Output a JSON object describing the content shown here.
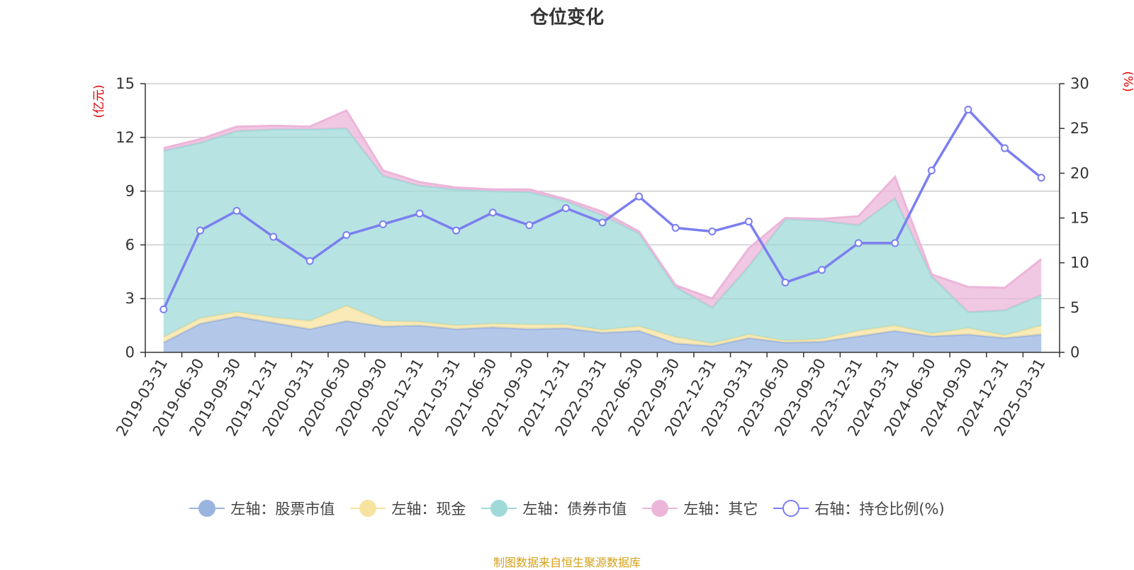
{
  "chart_data": {
    "type": "area",
    "title": "仓位变化",
    "source": "制图数据来自恒生聚源数据库",
    "left_axis_unit": "(亿元)",
    "right_axis_unit": "(%)",
    "left_ylim": [
      0,
      15
    ],
    "right_ylim": [
      0,
      30
    ],
    "left_ticks": [
      "0",
      "3",
      "6",
      "9",
      "12",
      "15"
    ],
    "right_ticks": [
      "0",
      "5",
      "10",
      "15",
      "20",
      "25",
      "30"
    ],
    "grid": true,
    "legend_position": "bottom",
    "categories": [
      "2019-03-31",
      "2019-06-30",
      "2019-09-30",
      "2019-12-31",
      "2020-03-31",
      "2020-06-30",
      "2020-09-30",
      "2020-12-31",
      "2021-03-31",
      "2021-06-30",
      "2021-09-30",
      "2021-12-31",
      "2022-03-31",
      "2022-06-30",
      "2022-09-30",
      "2022-12-31",
      "2023-03-31",
      "2023-06-30",
      "2023-09-30",
      "2023-12-31",
      "2024-03-31",
      "2024-06-30",
      "2024-09-30",
      "2024-12-31",
      "2025-03-31"
    ],
    "stacked_series": [
      {
        "name": "左轴：股票市值",
        "axis": "left",
        "color": "#9ab4e0",
        "values": [
          0.55,
          1.6,
          2.0,
          1.65,
          1.3,
          1.75,
          1.45,
          1.5,
          1.3,
          1.4,
          1.3,
          1.35,
          1.1,
          1.2,
          0.5,
          0.35,
          0.8,
          0.55,
          0.6,
          0.9,
          1.2,
          0.9,
          1.0,
          0.8,
          1.0
        ]
      },
      {
        "name": "左轴：现金",
        "axis": "left",
        "color": "#f7e3a0",
        "values": [
          0.3,
          0.3,
          0.25,
          0.3,
          0.45,
          0.85,
          0.3,
          0.2,
          0.2,
          0.2,
          0.25,
          0.2,
          0.15,
          0.25,
          0.35,
          0.15,
          0.2,
          0.1,
          0.15,
          0.3,
          0.3,
          0.15,
          0.35,
          0.15,
          0.5
        ]
      },
      {
        "name": "左轴：债券市值",
        "axis": "left",
        "color": "#9fdad8",
        "values": [
          10.4,
          9.8,
          10.1,
          10.5,
          10.7,
          9.9,
          8.1,
          7.6,
          7.6,
          7.4,
          7.4,
          6.9,
          6.4,
          5.2,
          2.8,
          2.0,
          3.8,
          6.8,
          6.6,
          5.9,
          7.1,
          3.2,
          0.9,
          1.4,
          1.7
        ]
      },
      {
        "name": "左轴：其它",
        "axis": "left",
        "color": "#ecb5da",
        "values": [
          0.15,
          0.2,
          0.25,
          0.2,
          0.15,
          1.0,
          0.3,
          0.2,
          0.1,
          0.1,
          0.15,
          0.1,
          0.2,
          0.1,
          0.1,
          0.5,
          1.0,
          0.05,
          0.1,
          0.5,
          1.2,
          0.1,
          1.4,
          1.25,
          2.0
        ]
      }
    ],
    "line_series": {
      "name": "右轴：持仓比例(%)",
      "axis": "right",
      "color": "#7b7ff0",
      "values": [
        4.8,
        13.6,
        15.8,
        12.9,
        10.2,
        13.1,
        14.3,
        15.5,
        13.6,
        15.6,
        14.2,
        16.1,
        14.5,
        17.4,
        13.9,
        13.5,
        14.6,
        7.8,
        9.2,
        12.2,
        12.2,
        20.3,
        27.1,
        22.8,
        19.5
      ]
    }
  }
}
